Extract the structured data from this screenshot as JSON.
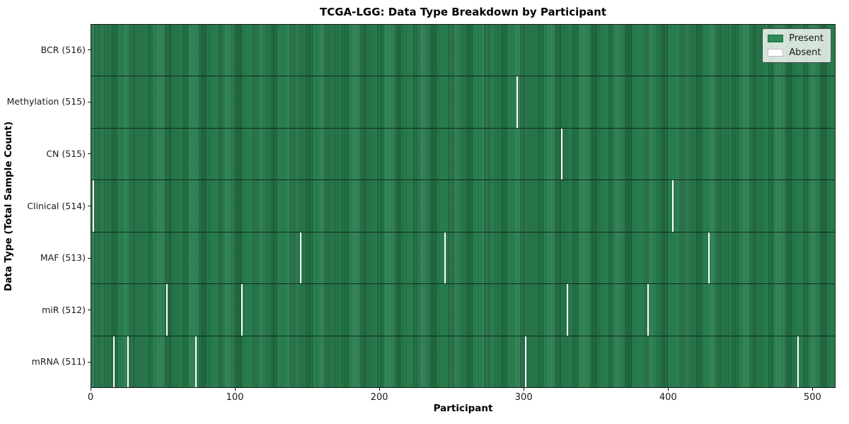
{
  "chart_data": {
    "type": "heatmap",
    "title": "TCGA-LGG: Data Type Breakdown by Participant",
    "xlabel": "Participant",
    "ylabel": "Data Type (Total Sample Count)",
    "x_ticks": [
      0,
      100,
      200,
      300,
      400,
      500
    ],
    "x_range": [
      0,
      516
    ],
    "total_participants": 516,
    "grid": false,
    "legend_position": "upper right",
    "legend": [
      {
        "label": "Present",
        "color": "#2e8b57"
      },
      {
        "label": "Absent",
        "color": "#ffffff"
      }
    ],
    "colors": {
      "present": "#2e8b57",
      "absent": "#ffffff",
      "bar_edge": "#0a2a18",
      "plot_border": "#1a1a1a"
    },
    "rows": [
      {
        "data_type": "BCR",
        "label": "BCR (516)",
        "sample_count": 516,
        "absent_participants": []
      },
      {
        "data_type": "Methylation",
        "label": "Methylation (515)",
        "sample_count": 515,
        "absent_participants": [
          295
        ]
      },
      {
        "data_type": "CN",
        "label": "CN (515)",
        "sample_count": 515,
        "absent_participants": [
          326
        ]
      },
      {
        "data_type": "Clinical",
        "label": "Clinical (514)",
        "sample_count": 514,
        "absent_participants": [
          1,
          403
        ]
      },
      {
        "data_type": "MAF",
        "label": "MAF (513)",
        "sample_count": 513,
        "absent_participants": [
          145,
          245,
          428
        ]
      },
      {
        "data_type": "miR",
        "label": "miR (512)",
        "sample_count": 512,
        "absent_participants": [
          52,
          104,
          330,
          386
        ]
      },
      {
        "data_type": "mRNA",
        "label": "mRNA (511)",
        "sample_count": 511,
        "absent_participants": [
          15,
          25,
          72,
          301,
          490
        ]
      }
    ]
  }
}
